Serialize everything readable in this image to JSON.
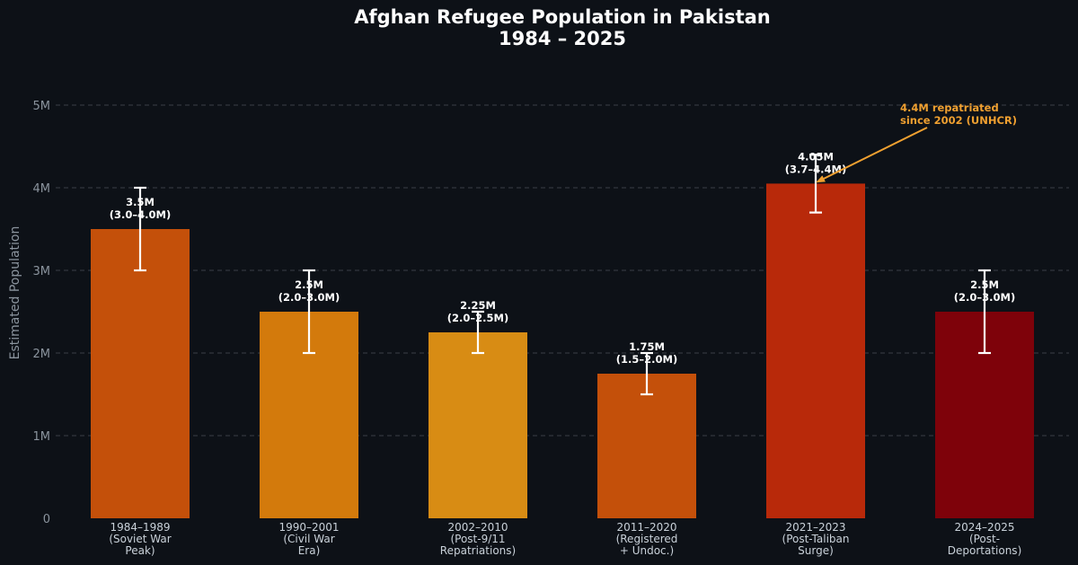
{
  "chart_data": {
    "type": "bar",
    "title": [
      "Afghan Refugee Population in Pakistan",
      "1984 – 2025"
    ],
    "ylabel": "Estimated Population",
    "ylim": [
      0,
      5400000
    ],
    "yticks": [
      {
        "value": 0,
        "label": "0"
      },
      {
        "value": 1000000,
        "label": "1M"
      },
      {
        "value": 2000000,
        "label": "2M"
      },
      {
        "value": 3000000,
        "label": "3M"
      },
      {
        "value": 4000000,
        "label": "4M"
      },
      {
        "value": 5000000,
        "label": "5M"
      }
    ],
    "grid": true,
    "categories": [
      [
        "1984–1989",
        "(Soviet War",
        "Peak)"
      ],
      [
        "1990–2001",
        "(Civil War",
        "Era)"
      ],
      [
        "2002–2010",
        "(Post-9/11",
        "Repatriations)"
      ],
      [
        "2011–2020",
        "(Registered",
        "+ Undoc.)"
      ],
      [
        "2021–2023",
        "(Post-Taliban",
        "Surge)"
      ],
      [
        "2024–2025",
        "(Post-",
        "Deportations)"
      ]
    ],
    "values": [
      3500000,
      2500000,
      2250000,
      1750000,
      4050000,
      2500000
    ],
    "error_low": [
      3000000,
      2000000,
      2000000,
      1500000,
      3700000,
      2000000
    ],
    "error_high": [
      4000000,
      3000000,
      2500000,
      2000000,
      4400000,
      3000000
    ],
    "data_labels": [
      [
        "3.5M",
        "(3.0–4.0M)"
      ],
      [
        "2.5M",
        "(2.0–3.0M)"
      ],
      [
        "2.25M",
        "(2.0–2.5M)"
      ],
      [
        "1.75M",
        "(1.5–2.0M)"
      ],
      [
        "4.05M",
        "(3.7–4.4M)"
      ],
      [
        "2.5M",
        "(2.0–3.0M)"
      ]
    ],
    "colors": [
      "#c4500a",
      "#d37a0c",
      "#d88c14",
      "#c4500a",
      "#b8290a",
      "#7e020a"
    ],
    "annotation": {
      "text": [
        "4.4M repatriated",
        "since 2002 (UNHCR)"
      ],
      "target_index": 4,
      "color": "#f0a030"
    }
  }
}
